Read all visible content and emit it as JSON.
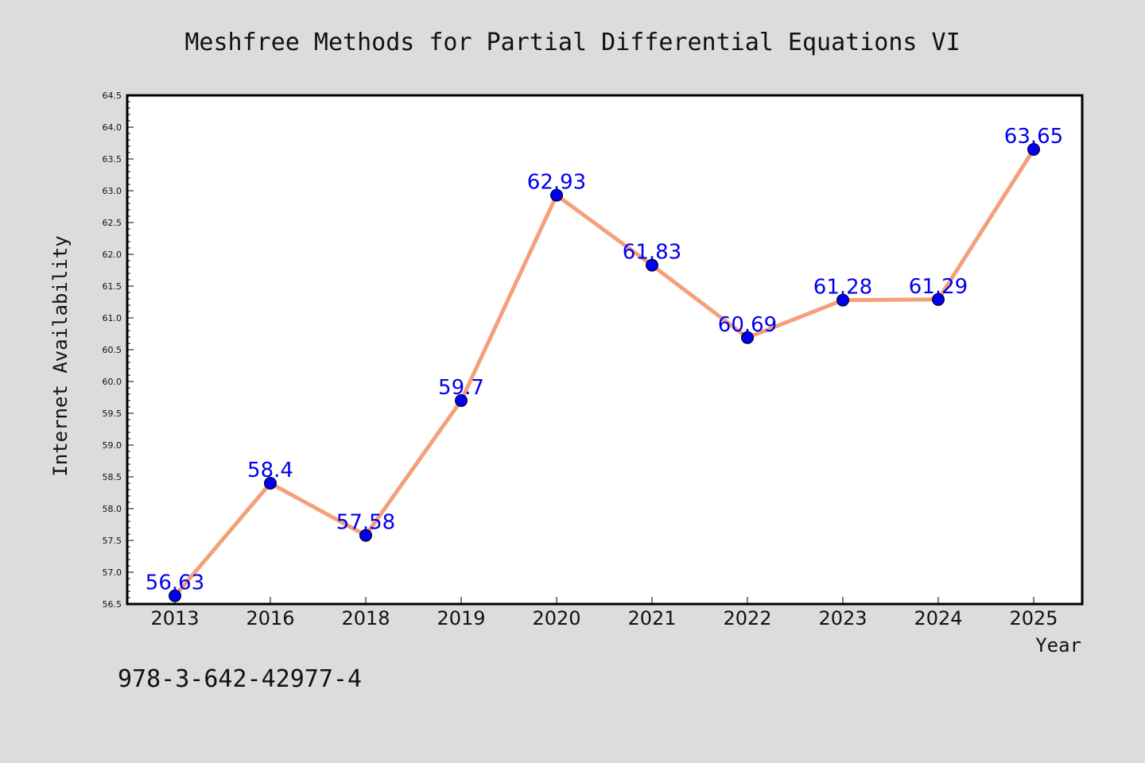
{
  "chart_data": {
    "type": "line",
    "title": "Meshfree Methods for Partial Differential Equations VI",
    "xlabel": "Year",
    "ylabel": "Internet Availability",
    "categories": [
      "2013",
      "2016",
      "2018",
      "2019",
      "2020",
      "2021",
      "2022",
      "2023",
      "2024",
      "2025"
    ],
    "series": [
      {
        "values": [
          56.63,
          58.4,
          57.58,
          59.7,
          62.93,
          61.83,
          60.69,
          61.28,
          61.29,
          63.65
        ],
        "data_labels": [
          "56.63",
          "58.4",
          "57.58",
          "59.7",
          "62.93",
          "61.83",
          "60.69",
          "61.28",
          "61.29",
          "63.65"
        ]
      }
    ],
    "ylim": [
      56.5,
      64.5
    ],
    "ytick_labels": [
      "56.5",
      "57.0",
      "57.5",
      "58.0",
      "58.5",
      "59.0",
      "59.5",
      "60.0",
      "60.5",
      "61.0",
      "61.5",
      "62.0",
      "62.5",
      "63.0",
      "63.5",
      "64.0",
      "64.5"
    ],
    "grid": false,
    "legend": "none",
    "line_color": "#f4a07a",
    "marker_color": "#0000ee",
    "label_color": "#0000ee",
    "footnote": "978-3-642-42977-4"
  }
}
